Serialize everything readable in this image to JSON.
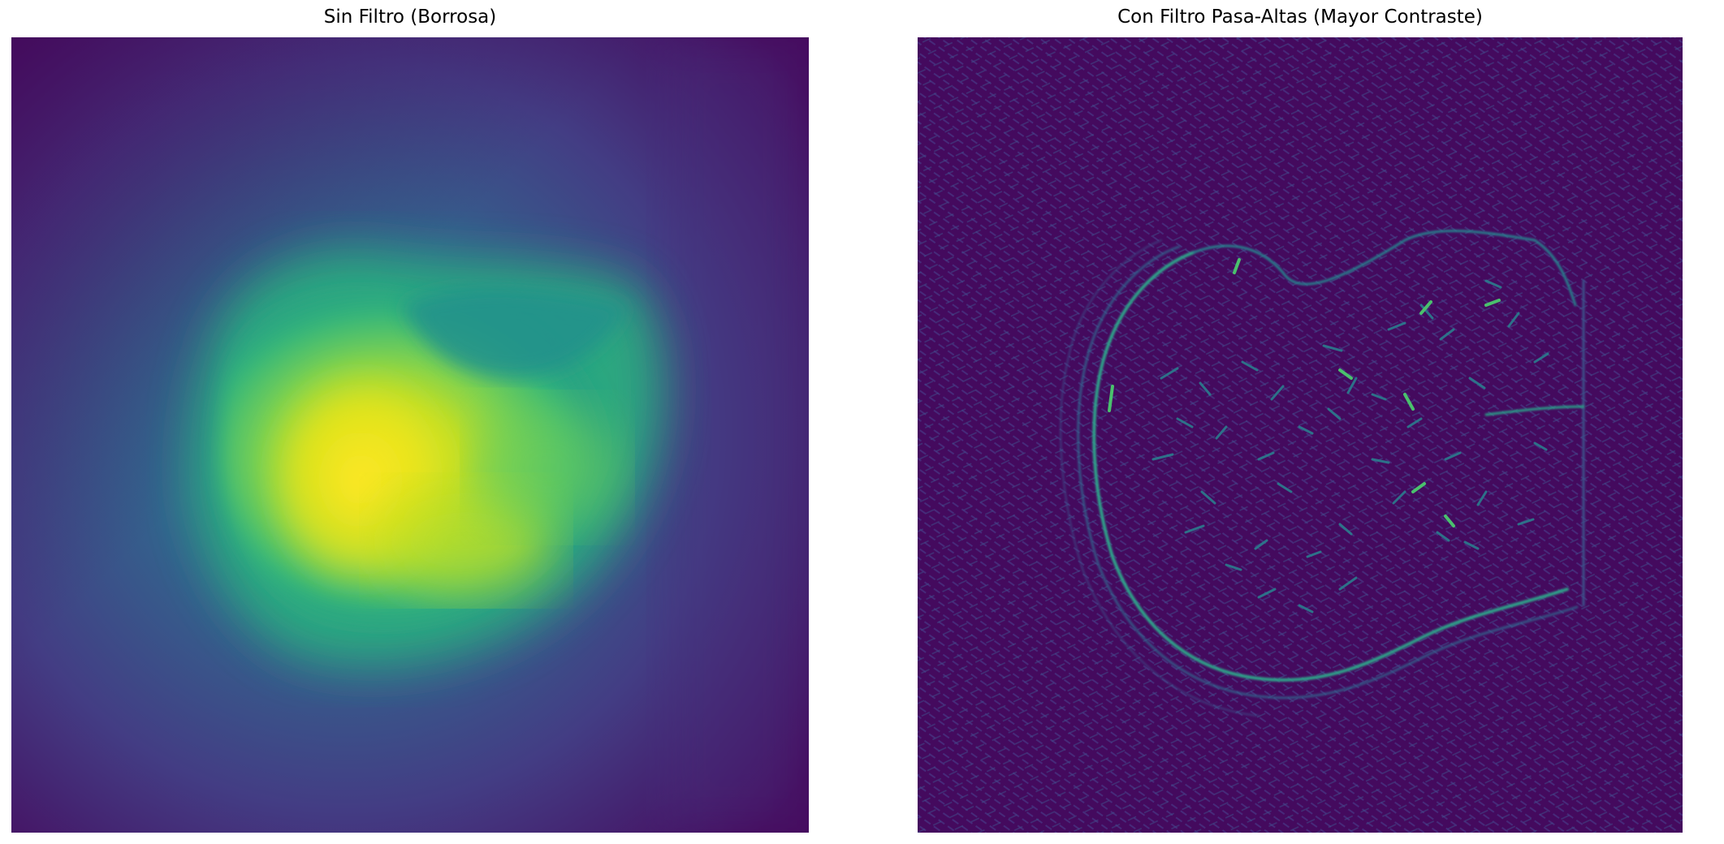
{
  "figure": {
    "panels": [
      {
        "title": "Sin Filtro (Borrosa)",
        "colormap": "viridis",
        "background": "#46085c",
        "highlight": "#fde725"
      },
      {
        "title": "Con Filtro Pasa-Altas (Mayor Contraste)",
        "colormap": "viridis",
        "background": "#440a5e",
        "edge_color": "#2fa48a"
      }
    ]
  }
}
